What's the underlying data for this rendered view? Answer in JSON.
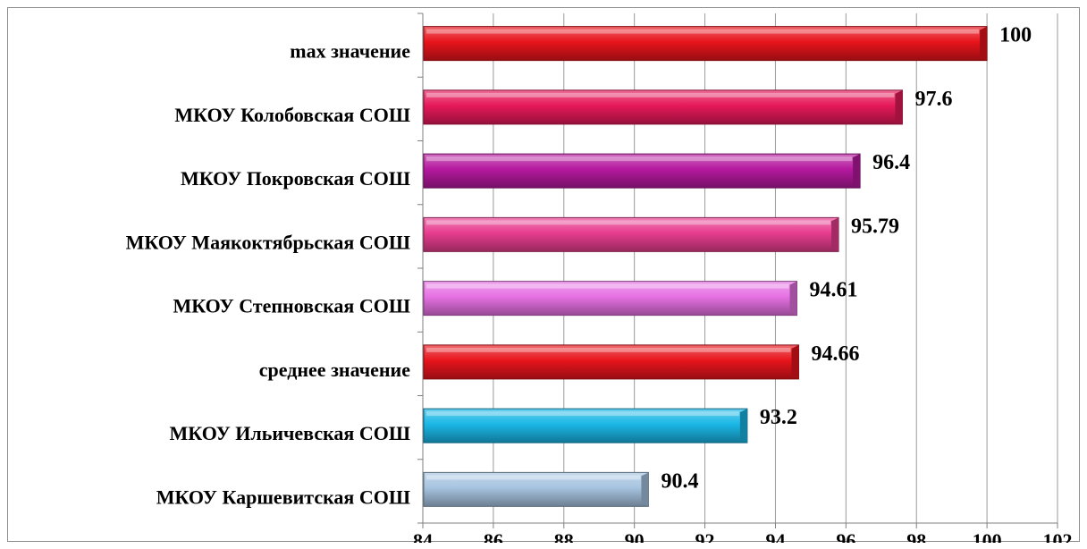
{
  "chart_data": {
    "type": "bar",
    "orientation": "horizontal",
    "categories": [
      "max значение",
      "МКОУ Колобовская СОШ",
      "МКОУ Покровская СОШ",
      "МКОУ Маякоктябрьская СОШ",
      "МКОУ Степновская СОШ",
      "среднее значение",
      "МКОУ Ильичевская СОШ",
      "МКОУ Каршевитская СОШ"
    ],
    "values": [
      100,
      97.6,
      96.4,
      95.79,
      94.61,
      94.66,
      93.2,
      90.4
    ],
    "value_labels": [
      "100",
      "97.6",
      "96.4",
      "95.79",
      "94.61",
      "94.66",
      "93.2",
      "90.4"
    ],
    "bar_colors": [
      "#e8141c",
      "#e6195a",
      "#b5199e",
      "#e83d8f",
      "#e671e3",
      "#e8141c",
      "#1ab7e6",
      "#a6c4e0"
    ],
    "xlim": [
      84,
      102
    ],
    "x_ticks": [
      84,
      86,
      88,
      90,
      92,
      94,
      96,
      98,
      100,
      102
    ],
    "x_tick_labels": [
      "84",
      "86",
      "88",
      "90",
      "92",
      "94",
      "96",
      "98",
      "100",
      "102"
    ],
    "grid": true,
    "title": "",
    "xlabel": "",
    "ylabel": ""
  }
}
